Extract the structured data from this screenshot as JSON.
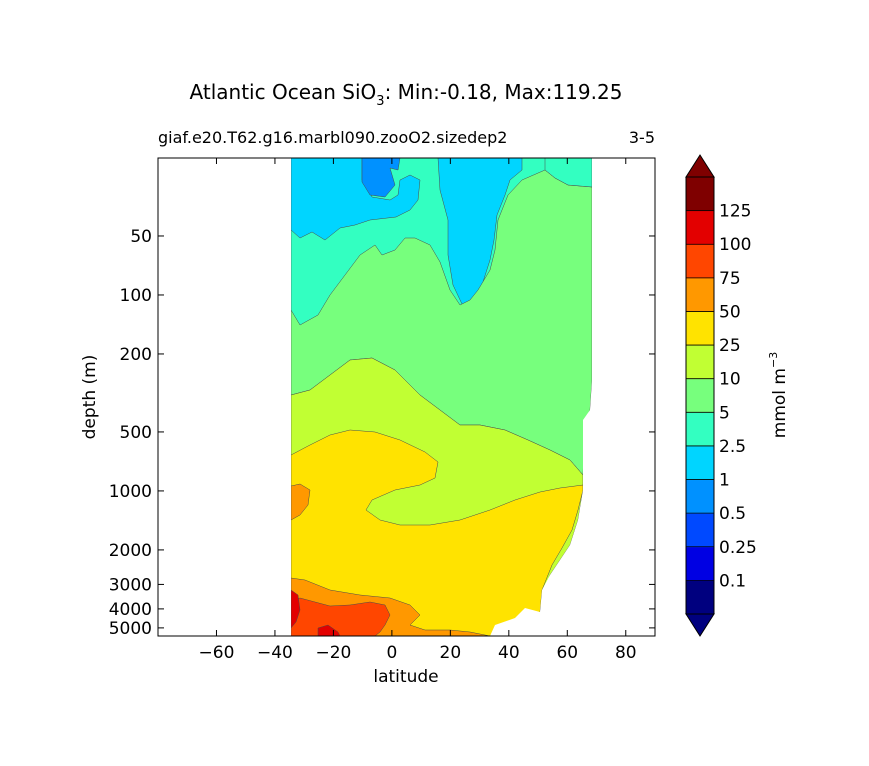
{
  "chart_data": {
    "type": "contour",
    "title_main": "Atlantic Ocean SiO",
    "title_sub": "3",
    "title_rest": ": Min:-0.18, Max:119.25",
    "subtitle_left": "giaf.e20.T62.g16.marbl090.zooO2.sizedep2",
    "subtitle_right": "3-5",
    "xlabel": "latitude",
    "ylabel": "depth (m)",
    "xlim": [
      -80,
      90
    ],
    "ylim": [
      5500,
      20
    ],
    "yscale": "log",
    "xticks": [
      -60,
      -40,
      -20,
      0,
      20,
      40,
      60,
      80
    ],
    "xtick_labels": [
      "−60",
      "−40",
      "−20",
      "0",
      "20",
      "40",
      "60",
      "80"
    ],
    "yticks": [
      50,
      100,
      200,
      500,
      1000,
      2000,
      3000,
      4000,
      5000
    ],
    "ytick_labels": [
      "50",
      "100",
      "200",
      "500",
      "1000",
      "2000",
      "3000",
      "4000",
      "5000"
    ],
    "colorbar": {
      "label": "mmol m",
      "label_sup": "−3",
      "levels": [
        "0.1",
        "0.25",
        "0.5",
        "1",
        "2.5",
        "5",
        "10",
        "25",
        "50",
        "75",
        "100",
        "125"
      ],
      "colors": [
        "#00007f",
        "#0000e3",
        "#0049ff",
        "#0091ff",
        "#00d5ff",
        "#33ffc1",
        "#77ff7d",
        "#c1ff33",
        "#ffe300",
        "#ff9800",
        "#ff4600",
        "#e30000",
        "#7f0000"
      ]
    }
  }
}
